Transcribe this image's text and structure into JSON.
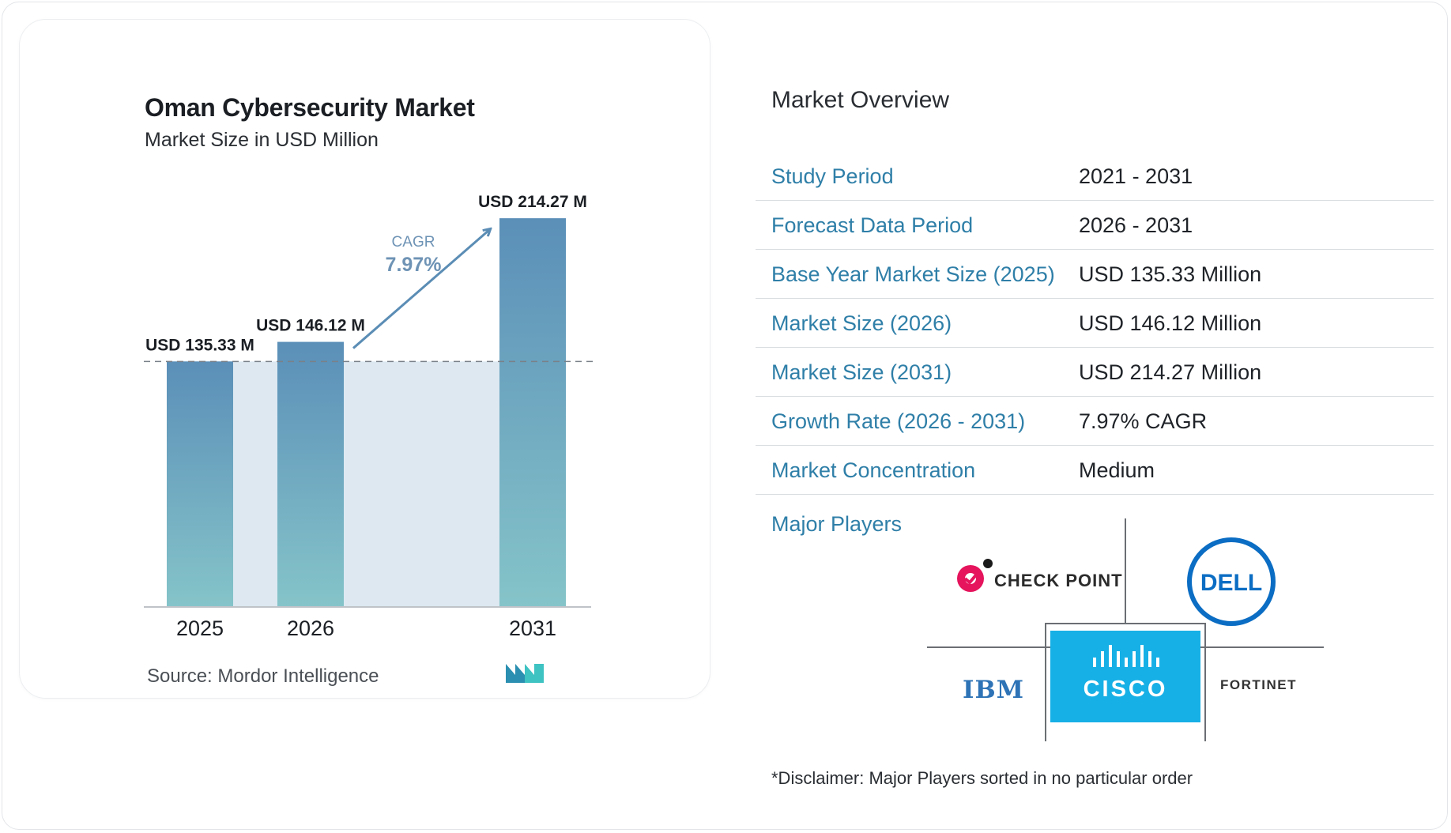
{
  "chart_data": {
    "type": "bar",
    "title": "Oman Cybersecurity Market",
    "subtitle": "Market Size in USD Million",
    "categories": [
      "2025",
      "2026",
      "2031"
    ],
    "values": [
      135.33,
      146.12,
      214.27
    ],
    "value_labels": [
      "USD 135.33 M",
      "USD 146.12 M",
      "USD 214.27 M"
    ],
    "cagr_label": "CAGR",
    "cagr_value": "7.97%",
    "ylim": [
      0,
      230
    ],
    "grid": false,
    "colors": {
      "bar_top": "#5b8fb8",
      "bar_bottom": "#85c4c9",
      "band": "#dde8f1",
      "arrow": "#5b8db5",
      "baseline": "#bfc4c9"
    }
  },
  "source_label": "Source:",
  "source_name": "Mordor Intelligence",
  "overview": {
    "title": "Market Overview",
    "rows": [
      {
        "label": "Study Period",
        "value": "2021 - 2031"
      },
      {
        "label": "Forecast Data Period",
        "value": "2026 - 2031"
      },
      {
        "label": "Base Year Market Size (2025)",
        "value": "USD 135.33 Million"
      },
      {
        "label": "Market Size (2026)",
        "value": "USD 146.12 Million"
      },
      {
        "label": "Market Size (2031)",
        "value": "USD 214.27 Million"
      },
      {
        "label": "Growth Rate (2026 - 2031)",
        "value": "7.97% CAGR"
      },
      {
        "label": "Market Concentration",
        "value": "Medium"
      }
    ],
    "players_label": "Major Players",
    "players": [
      "CHECK POINT",
      "DELL",
      "IBM",
      "CISCO",
      "FORTINET"
    ],
    "disclaimer": "*Disclaimer: Major Players sorted in no particular order"
  }
}
